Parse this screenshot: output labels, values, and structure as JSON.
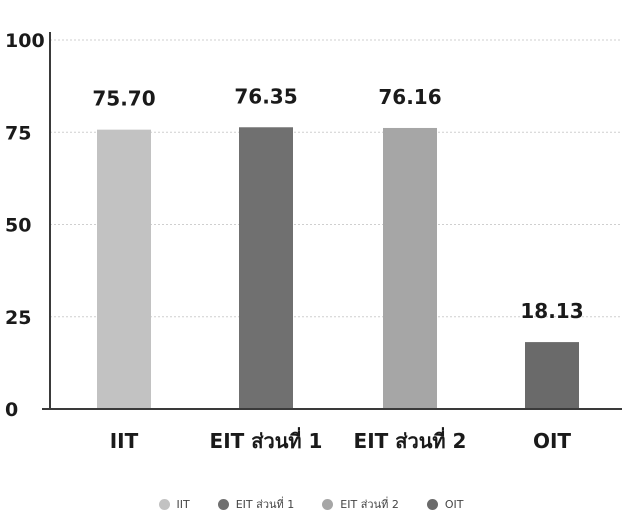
{
  "chart_data": {
    "type": "bar",
    "categories": [
      "IIT",
      "EIT ส่วนที่ 1",
      "EIT ส่วนที่ 2",
      "OIT"
    ],
    "values": [
      75.7,
      76.35,
      76.16,
      18.13
    ],
    "value_labels": [
      "75.70",
      "76.35",
      "76.16",
      "18.13"
    ],
    "colors": [
      "#c2c2c2",
      "#707070",
      "#a6a6a6",
      "#6a6a6a"
    ],
    "yticks": [
      "0",
      "25",
      "50",
      "75",
      "100"
    ],
    "ylim": [
      0,
      100
    ],
    "grid": true,
    "legend_position": "bottom",
    "legend": [
      "IIT",
      "EIT ส่วนที่ 1",
      "EIT ส่วนที่ 2",
      "OIT"
    ]
  }
}
